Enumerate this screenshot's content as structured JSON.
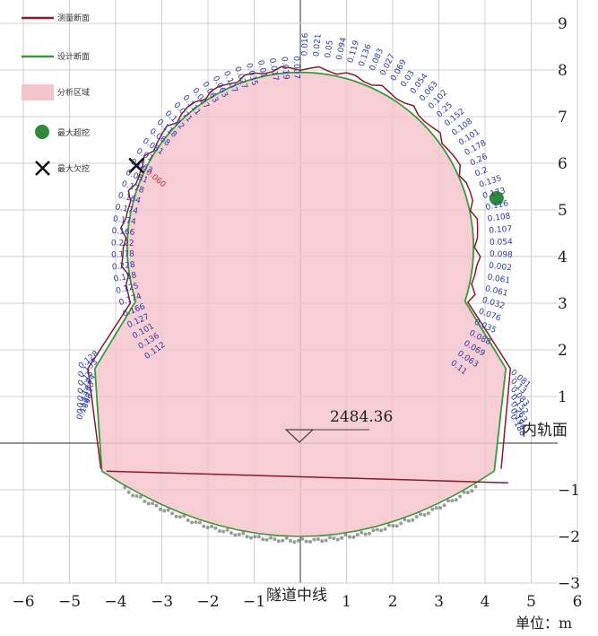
{
  "chart_data": {
    "type": "scatter",
    "title": "",
    "xlabel": "隧道中线",
    "ylabel": "",
    "unit_label": "单位：m",
    "xlim": [
      -6,
      6
    ],
    "ylim": [
      -3,
      9
    ],
    "x_ticks": [
      "−6",
      "−5",
      "−4",
      "−3",
      "−2",
      "−1",
      "1",
      "2",
      "3",
      "4",
      "5",
      "6"
    ],
    "y_ticks": [
      "9",
      "8",
      "7",
      "6",
      "5",
      "4",
      "3",
      "2",
      "1",
      "−1",
      "−2",
      "−3"
    ],
    "grid": true,
    "legend": {
      "position": "top-left",
      "items": [
        {
          "label": "测量断面",
          "color": "#8b1a2b",
          "kind": "line"
        },
        {
          "label": "设计断面",
          "color": "#3a9a3a",
          "kind": "line"
        },
        {
          "label": "分析区域",
          "color": "#f4c6cc",
          "kind": "area"
        },
        {
          "label": "最大超挖",
          "color": "#2e8b3a",
          "kind": "dot"
        },
        {
          "label": "最大欠挖",
          "color": "#111111",
          "kind": "cross"
        }
      ]
    },
    "rail_label": "内轨面",
    "rail_elevation_label": "2484.36",
    "max_overbreak_point": {
      "x": 4.25,
      "y": 5.25
    },
    "max_underbreak_point": {
      "x": -3.55,
      "y": 5.95,
      "label": "0.060"
    },
    "design_profile": {
      "arch_center": [
        0,
        4.2
      ],
      "arch_radius": 3.75,
      "wall_base": [
        [
          -4.3,
          -0.6
        ],
        [
          4.2,
          -0.6
        ]
      ],
      "invert_bottom": -2.0
    },
    "measured_deviations_right": [
      "0.016",
      "0.021",
      "0.05",
      "0.094",
      "0.119",
      "0.136",
      "0.083",
      "0.027",
      "0.069",
      "0.03",
      "0.054",
      "0.063",
      "0.102",
      "0.25",
      "0.152",
      "0.108",
      "0.101",
      "0.178",
      "0.26",
      "0.2",
      "0.135",
      "0.173",
      "0.116",
      "0.108",
      "0.107",
      "0.054",
      "0.098",
      "0.002",
      "0.061",
      "0.061",
      "0.032",
      "0.076",
      "0.035",
      "0.088",
      "0.069",
      "0.063",
      "0.11",
      "0.081",
      "0.13",
      "0.083",
      "0.152",
      "0.263",
      "0.194",
      "0.188"
    ],
    "measured_deviations_left": [
      "0.007",
      "0.019",
      "0.017",
      "0.01",
      "0.035",
      "0.027",
      "0.107",
      "0.063",
      "0.063",
      "0.027",
      "0.111",
      "0.071",
      "0.122",
      "0.118",
      "0.068",
      "0.081",
      "0.01",
      "0.063",
      "0.081",
      "0.178",
      "0.164",
      "0.174",
      "0.174",
      "0.166",
      "0.222",
      "0.178",
      "0.228",
      "0.158",
      "0.125",
      "0.174",
      "0.166",
      "0.127",
      "0.101",
      "0.136",
      "0.112",
      "0.128",
      "0.133",
      "0.15",
      "0.184",
      "0.183",
      "0.132",
      "0.128",
      "0.109"
    ]
  }
}
